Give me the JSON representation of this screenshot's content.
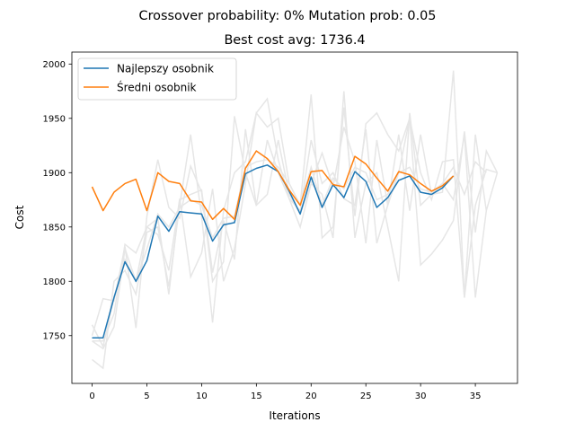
{
  "chart_data": {
    "type": "line",
    "suptitle": "Crossover probability: 0% Mutation prob: 0.05",
    "title": "Best cost avg: 1736.4",
    "xlabel": "Iterations",
    "ylabel": "Cost",
    "xlim": [
      -1.85,
      38.85
    ],
    "ylim": [
      1706,
      2011
    ],
    "xticks": [
      0,
      5,
      10,
      15,
      20,
      25,
      30,
      35
    ],
    "yticks": [
      1750,
      1800,
      1850,
      1900,
      1950,
      2000
    ],
    "grid": false,
    "legend": {
      "position": "top-left"
    },
    "series": [
      {
        "name": "Najlepszy osobnik",
        "color": "#1f77b4",
        "x": [
          0,
          1,
          2,
          3,
          4,
          5,
          6,
          7,
          8,
          9,
          10,
          11,
          12,
          13,
          14,
          15,
          16,
          17,
          18,
          19,
          20,
          21,
          22,
          23,
          24,
          25,
          26,
          27,
          28,
          29,
          30,
          31,
          32,
          33
        ],
        "values": [
          1748,
          1748,
          1785,
          1818,
          1800,
          1819,
          1860,
          1846,
          1864,
          1863,
          1862,
          1837,
          1852,
          1854,
          1899,
          1904,
          1907,
          1901,
          1883,
          1862,
          1896,
          1868,
          1889,
          1877,
          1901,
          1892,
          1868,
          1877,
          1893,
          1897,
          1882,
          1880,
          1886,
          1897
        ]
      },
      {
        "name": "Średni osobnik",
        "color": "#ff7f0e",
        "x": [
          0,
          1,
          2,
          3,
          4,
          5,
          6,
          7,
          8,
          9,
          10,
          11,
          12,
          13,
          14,
          15,
          16,
          17,
          18,
          19,
          20,
          21,
          22,
          23,
          24,
          25,
          26,
          27,
          28,
          29,
          30,
          31,
          32,
          33
        ],
        "values": [
          1887,
          1865,
          1882,
          1890,
          1894,
          1865,
          1900,
          1892,
          1890,
          1874,
          1873,
          1857,
          1867,
          1857,
          1904,
          1920,
          1913,
          1901,
          1884,
          1870,
          1901,
          1902,
          1889,
          1887,
          1915,
          1908,
          1895,
          1883,
          1901,
          1898,
          1890,
          1883,
          1888,
          1897
        ]
      }
    ],
    "background_runs": {
      "color": "#e6e6e6",
      "lines": [
        {
          "x": [
            0,
            1,
            2,
            3,
            4,
            5,
            6,
            7,
            8,
            9,
            10,
            11,
            12,
            13,
            14,
            15,
            16,
            17,
            18,
            19,
            20,
            21,
            22,
            23,
            24,
            25,
            26,
            27,
            28,
            29,
            30,
            31,
            32,
            33,
            34,
            35,
            36
          ],
          "values": [
            1760,
            1740,
            1785,
            1820,
            1800,
            1830,
            1862,
            1850,
            1868,
            1875,
            1870,
            1840,
            1858,
            1860,
            1905,
            1910,
            1912,
            1905,
            1890,
            1870,
            1905,
            1870,
            1895,
            1885,
            1905,
            1900,
            1875,
            1880,
            1900,
            1905,
            1885,
            1882,
            1890,
            1905,
            1880,
            1910,
            1900
          ]
        },
        {
          "x": [
            0,
            1,
            2,
            3,
            4,
            5,
            6,
            7,
            8,
            9,
            10,
            11,
            12,
            13,
            14,
            15,
            16,
            17,
            18,
            19,
            20,
            21,
            22,
            23,
            24,
            25,
            26,
            27,
            28,
            29,
            30,
            31,
            32,
            33,
            34,
            35,
            36
          ],
          "values": [
            1728,
            1720,
            1800,
            1810,
            1788,
            1845,
            1850,
            1795,
            1870,
            1935,
            1860,
            1762,
            1865,
            1900,
            1910,
            1955,
            1968,
            1912,
            1876,
            1865,
            1930,
            1890,
            1900,
            1876,
            1870,
            1940,
            1835,
            1870,
            1935,
            1865,
            1935,
            1880,
            1882,
            1994,
            1785,
            1935,
            1865
          ]
        },
        {
          "x": [
            0,
            1,
            2,
            3,
            4,
            5,
            6,
            7,
            8,
            9,
            10,
            11,
            12,
            13,
            14,
            15,
            16,
            17,
            18,
            19,
            20,
            21,
            22,
            23,
            24,
            25,
            26,
            27,
            28,
            29,
            30,
            31,
            32,
            33,
            34,
            35,
            36,
            37
          ],
          "values": [
            1745,
            1745,
            1770,
            1834,
            1826,
            1850,
            1843,
            1810,
            1876,
            1804,
            1826,
            1885,
            1800,
            1830,
            1890,
            1955,
            1942,
            1950,
            1890,
            1870,
            1972,
            1840,
            1850,
            1960,
            1860,
            1945,
            1955,
            1935,
            1920,
            1950,
            1815,
            1825,
            1838,
            1856,
            1938,
            1845,
            1920,
            1900
          ]
        },
        {
          "x": [
            0,
            1,
            2,
            3,
            4,
            5,
            6,
            7,
            8,
            9,
            10,
            11,
            12,
            13,
            14,
            15,
            16,
            17,
            18,
            19,
            20,
            21,
            22,
            23,
            24,
            25,
            26,
            27,
            28,
            29,
            30,
            31,
            32,
            33,
            34,
            35,
            36,
            37
          ],
          "values": [
            1750,
            1784,
            1782,
            1832,
            1757,
            1860,
            1912,
            1868,
            1858,
            1906,
            1882,
            1800,
            1818,
            1952,
            1900,
            1870,
            1930,
            1900,
            1876,
            1850,
            1890,
            1918,
            1887,
            1942,
            1910,
            1835,
            1930,
            1870,
            1900,
            1950,
            1900,
            1875,
            1910,
            1912,
            1785,
            1870,
            1903,
            1900
          ]
        },
        {
          "x": [
            0,
            1,
            2,
            3,
            4,
            5,
            6,
            7,
            8,
            9,
            10,
            11,
            12,
            13,
            14,
            15,
            16,
            17,
            18,
            19,
            20,
            21,
            22,
            23,
            24,
            25,
            26,
            27,
            28,
            29,
            30,
            31,
            32,
            33,
            34,
            35,
            36,
            37
          ],
          "values": [
            1745,
            1738,
            1758,
            1830,
            1800,
            1850,
            1858,
            1788,
            1875,
            1880,
            1884,
            1808,
            1856,
            1820,
            1940,
            1870,
            1880,
            1930,
            1880,
            1862,
            1890,
            1880,
            1840,
            1975,
            1840,
            1890,
            1900,
            1850,
            1800,
            1955,
            1870,
            1880,
            1890,
            1875,
            1935,
            1785,
            1865,
            1900
          ]
        }
      ]
    }
  }
}
